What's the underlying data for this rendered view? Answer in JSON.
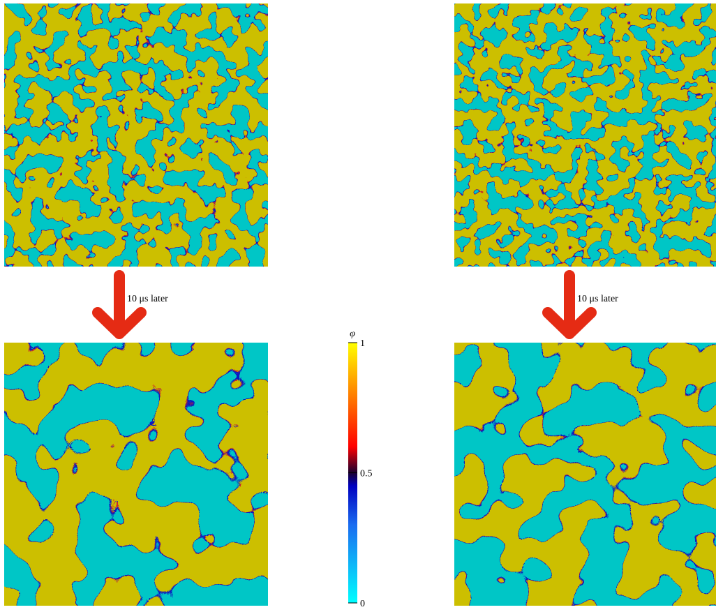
{
  "annotations": [
    "10 μs later",
    "10 μs later"
  ],
  "colorbar": {
    "label": "φ",
    "lim": [
      0,
      1
    ],
    "ticks": [
      0,
      0.5,
      1
    ]
  }
}
